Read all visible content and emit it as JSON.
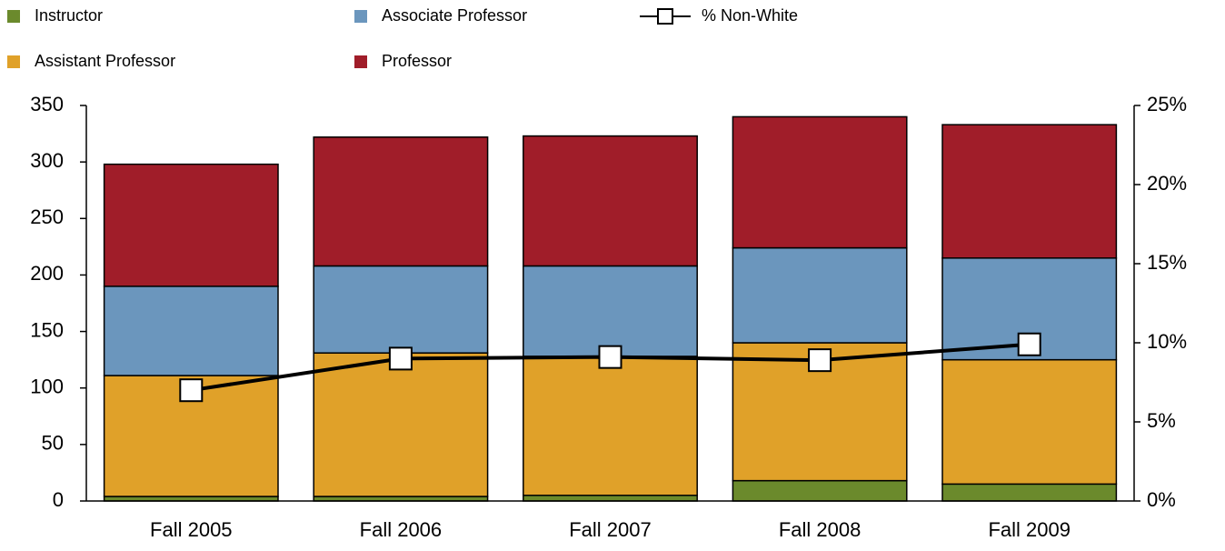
{
  "chart_data": {
    "type": "bar",
    "stacked": true,
    "categories": [
      "Fall 2005",
      "Fall 2006",
      "Fall 2007",
      "Fall 2008",
      "Fall 2009"
    ],
    "series": [
      {
        "name": "Instructor",
        "color": "#6b8a2c",
        "values": [
          4,
          4,
          5,
          18,
          15
        ]
      },
      {
        "name": "Assistant Professor",
        "color": "#e0a129",
        "values": [
          107,
          127,
          123,
          122,
          110
        ]
      },
      {
        "name": "Associate Professor",
        "color": "#6b96bd",
        "values": [
          79,
          77,
          80,
          84,
          90
        ]
      },
      {
        "name": "Professor",
        "color": "#a01d29",
        "values": [
          108,
          114,
          115,
          116,
          118
        ]
      },
      {
        "name": "% Non-White",
        "type": "line",
        "axis": "y2",
        "color": "#000000",
        "values": [
          7.0,
          9.0,
          9.1,
          8.9,
          9.9
        ]
      }
    ],
    "ylim": [
      0,
      350
    ],
    "yticks": [
      0,
      50,
      100,
      150,
      200,
      250,
      300,
      350
    ],
    "y2lim": [
      0,
      25
    ],
    "y2ticks": [
      {
        "value": 0,
        "label": "0%"
      },
      {
        "value": 5,
        "label": "5%"
      },
      {
        "value": 10,
        "label": "10%"
      },
      {
        "value": 15,
        "label": "15%"
      },
      {
        "value": 20,
        "label": "20%"
      },
      {
        "value": 25,
        "label": "25%"
      }
    ],
    "legend": "top"
  }
}
